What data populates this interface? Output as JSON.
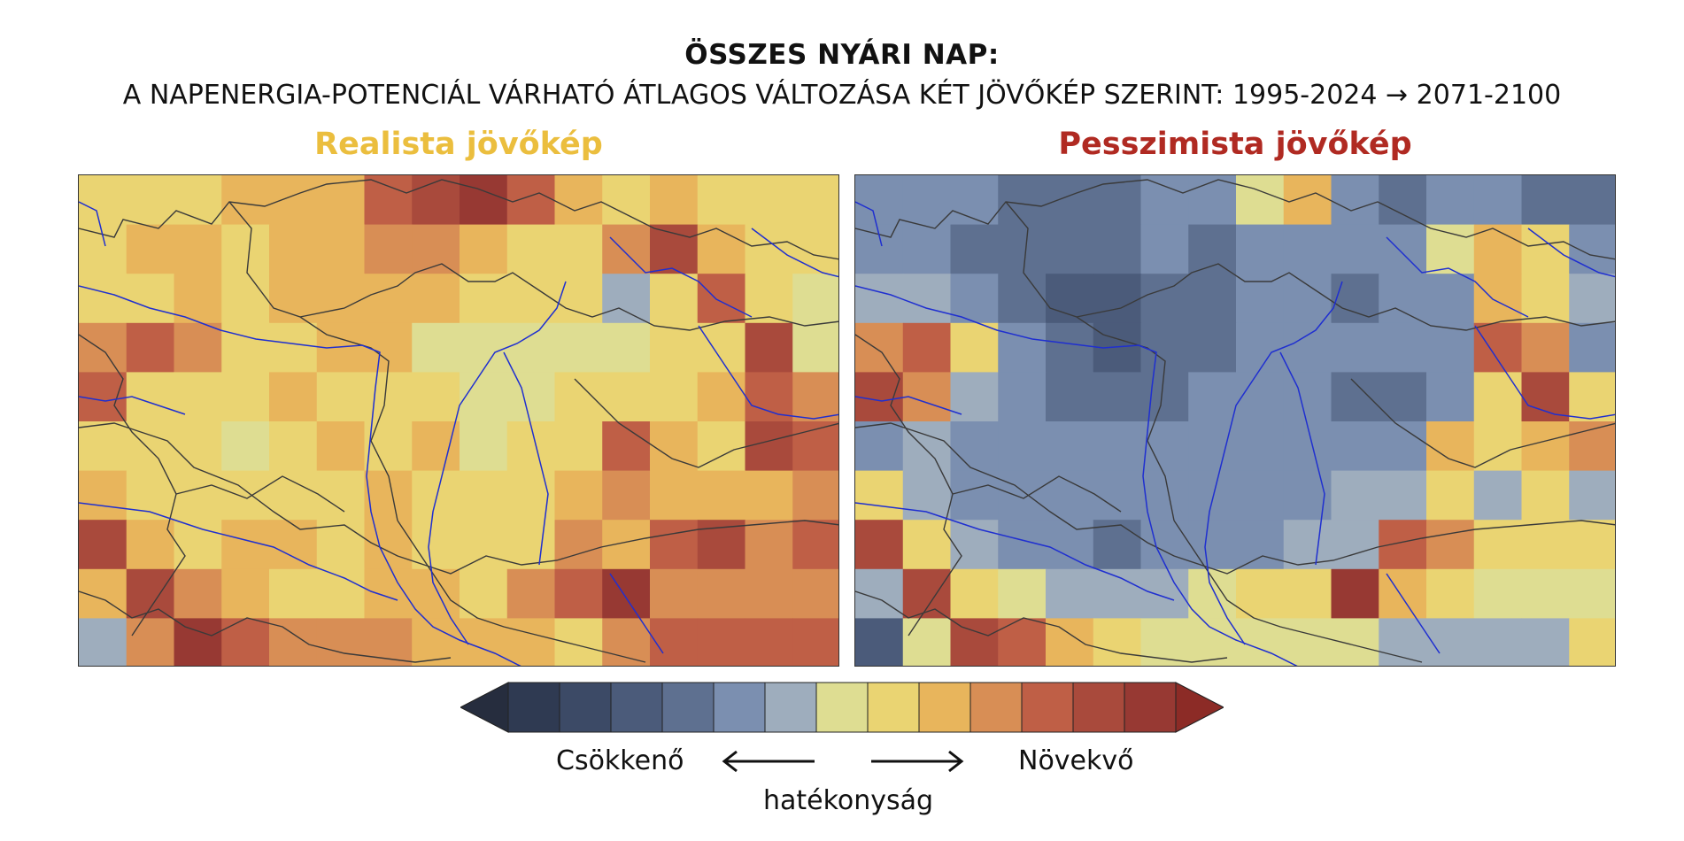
{
  "title": {
    "line1": "ÖSSZES NYÁRI NAP:",
    "line2": "A NAPENERGIA-POTENCIÁL VÁRHATÓ ÁTLAGOS VÁLTOZÁSA KÉT JÖVŐKÉP SZERINT: 1995-2024 → 2071-2100"
  },
  "panels": [
    {
      "title": "Realista jövőkép",
      "title_color": "#ebbe3e"
    },
    {
      "title": "Pesszimista jövőkép",
      "title_color": "#b02a22"
    }
  ],
  "legend": {
    "decreasing_label": "Csökkenő",
    "increasing_label": "Növekvő",
    "axis_label": "hatékonyság"
  },
  "colors": {
    "scale": [
      "#262d3e",
      "#2f3a52",
      "#3c4a66",
      "#4b5b7a",
      "#5e7090",
      "#7b8fb0",
      "#9eadbd",
      "#dedd92",
      "#ead472",
      "#e8b55c",
      "#d88e55",
      "#bf5f46",
      "#a94a3c",
      "#973933",
      "#8c2b26"
    ],
    "river": "#1f2fd0",
    "border": "#3a3a3a"
  },
  "chart_data": {
    "type": "heatmap",
    "grid_cols": 16,
    "grid_rows": 10,
    "scale_levels": 15,
    "scale_note": "values are index 0-14 into colors.scale (0 = strongest decrease, 14 = strongest increase)",
    "maps": [
      {
        "name": "Realista jövőkép",
        "values": [
          [
            8,
            8,
            8,
            9,
            9,
            9,
            11,
            12,
            13,
            11,
            9,
            8,
            9,
            8,
            8,
            8
          ],
          [
            8,
            9,
            9,
            8,
            9,
            9,
            10,
            10,
            9,
            8,
            8,
            10,
            12,
            9,
            8,
            8
          ],
          [
            8,
            8,
            9,
            8,
            9,
            9,
            9,
            9,
            8,
            8,
            8,
            6,
            8,
            11,
            8,
            7
          ],
          [
            10,
            11,
            10,
            8,
            8,
            9,
            9,
            7,
            7,
            7,
            7,
            7,
            8,
            8,
            12,
            7
          ],
          [
            11,
            8,
            8,
            8,
            9,
            8,
            8,
            8,
            7,
            7,
            8,
            8,
            8,
            9,
            11,
            10
          ],
          [
            8,
            8,
            8,
            7,
            8,
            9,
            8,
            9,
            7,
            8,
            8,
            11,
            9,
            8,
            12,
            11
          ],
          [
            9,
            8,
            8,
            8,
            8,
            8,
            9,
            8,
            8,
            8,
            9,
            10,
            9,
            9,
            9,
            10
          ],
          [
            12,
            9,
            8,
            9,
            9,
            8,
            9,
            8,
            8,
            8,
            10,
            9,
            11,
            12,
            10,
            11
          ],
          [
            9,
            12,
            10,
            9,
            8,
            8,
            9,
            9,
            8,
            10,
            11,
            13,
            10,
            10,
            10,
            10
          ],
          [
            6,
            10,
            13,
            11,
            10,
            10,
            10,
            9,
            9,
            9,
            8,
            10,
            11,
            11,
            11,
            11
          ]
        ]
      },
      {
        "name": "Pesszimista jövőkép",
        "values": [
          [
            5,
            5,
            5,
            4,
            4,
            4,
            5,
            5,
            7,
            9,
            5,
            4,
            5,
            5,
            4,
            4
          ],
          [
            5,
            5,
            4,
            4,
            4,
            4,
            5,
            4,
            5,
            5,
            5,
            5,
            7,
            9,
            8,
            5
          ],
          [
            6,
            6,
            5,
            4,
            3,
            3,
            4,
            4,
            5,
            5,
            4,
            5,
            5,
            9,
            8,
            6
          ],
          [
            10,
            11,
            8,
            5,
            4,
            3,
            4,
            4,
            5,
            5,
            5,
            5,
            5,
            11,
            10,
            5
          ],
          [
            12,
            10,
            6,
            5,
            4,
            4,
            4,
            5,
            5,
            5,
            4,
            4,
            5,
            8,
            12,
            8
          ],
          [
            5,
            6,
            5,
            5,
            5,
            5,
            5,
            5,
            5,
            5,
            5,
            5,
            9,
            8,
            9,
            10
          ],
          [
            8,
            6,
            5,
            5,
            5,
            5,
            5,
            5,
            5,
            5,
            6,
            6,
            8,
            6,
            8,
            6
          ],
          [
            12,
            8,
            6,
            5,
            5,
            4,
            5,
            5,
            5,
            6,
            6,
            11,
            10,
            8,
            8,
            8
          ],
          [
            6,
            12,
            8,
            7,
            6,
            6,
            6,
            7,
            8,
            8,
            13,
            9,
            8,
            7,
            7,
            7
          ],
          [
            3,
            7,
            12,
            11,
            9,
            8,
            7,
            7,
            7,
            7,
            7,
            6,
            6,
            6,
            6,
            8
          ]
        ]
      }
    ]
  }
}
